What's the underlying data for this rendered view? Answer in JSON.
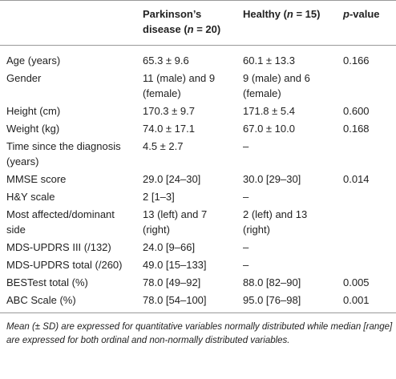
{
  "table": {
    "columns": [
      null,
      [
        "Parkinson’s disease (",
        "n",
        " = 20)"
      ],
      [
        "Healthy (",
        "n",
        " = 15)"
      ],
      [
        "p",
        "-value"
      ]
    ],
    "rows": [
      [
        "Age (years)",
        "65.3 ± 9.6",
        "60.1 ± 13.3",
        "0.166"
      ],
      [
        "Gender",
        "11 (male) and 9 (female)",
        "9 (male) and 6 (female)",
        null
      ],
      [
        "Height (cm)",
        "170.3 ± 9.7",
        "171.8 ± 5.4",
        "0.600"
      ],
      [
        "Weight (kg)",
        "74.0 ± 17.1",
        "67.0 ± 10.0",
        "0.168"
      ],
      [
        "Time since the diagnosis (years)",
        "4.5 ± 2.7",
        "–",
        null
      ],
      [
        "MMSE score",
        "29.0 [24–30]",
        "30.0 [29–30]",
        "0.014"
      ],
      [
        "H&Y scale",
        "2 [1–3]",
        "–",
        null
      ],
      [
        "Most affected/dominant side",
        "13 (left) and 7 (right)",
        "2 (left) and 13 (right)",
        null
      ],
      [
        "MDS-UPDRS III (/132)",
        "24.0 [9–66]",
        "–",
        null
      ],
      [
        "MDS-UPDRS total (/260)",
        "49.0 [15–133]",
        "–",
        null
      ],
      [
        "BESTest total (%)",
        "78.0 [49–92]",
        "88.0 [82–90]",
        "0.005"
      ],
      [
        "ABC Scale (%)",
        "78.0 [54–100]",
        "95.0 [76–98]",
        "0.001"
      ]
    ],
    "footnote": "Mean (± SD) are expressed for quantitative variables normally distributed while median [range] are expressed for both ordinal and non-normally distributed variables."
  }
}
